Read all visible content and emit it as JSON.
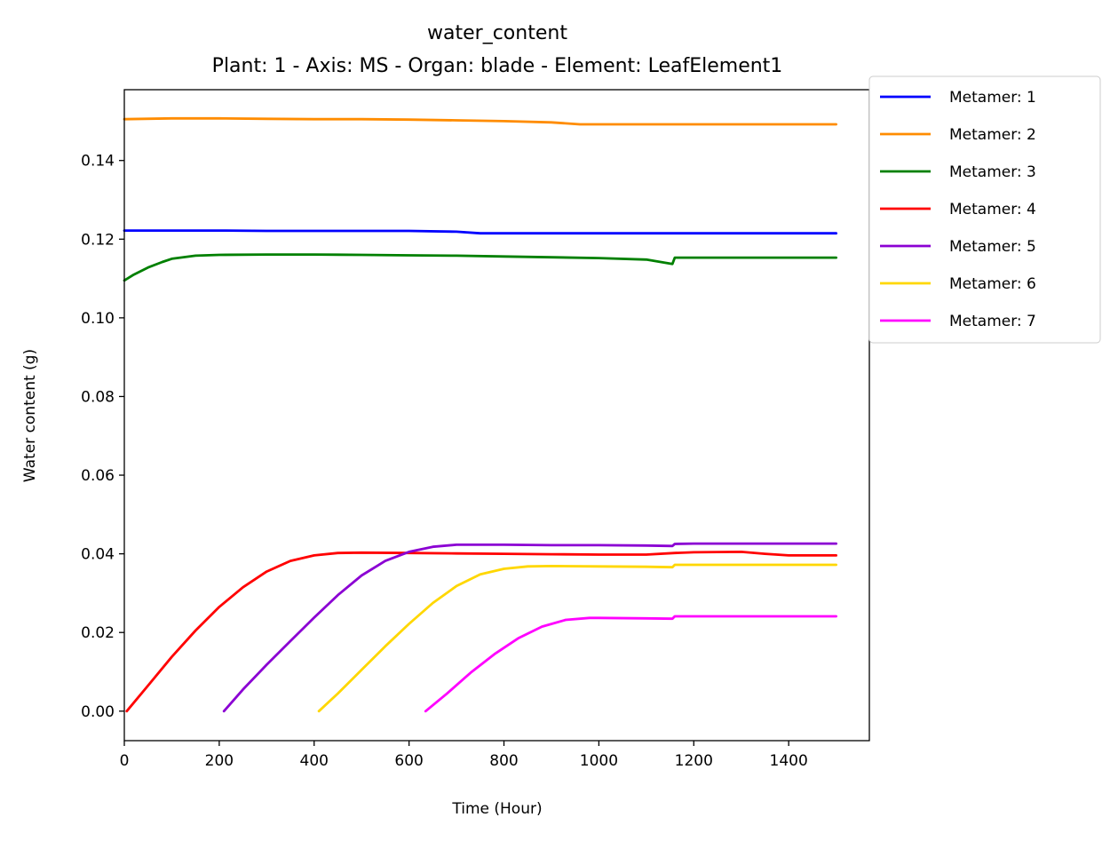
{
  "chart_data": {
    "type": "line",
    "title": "water_content",
    "subtitle": "Plant: 1 - Axis: MS - Organ: blade - Element: LeafElement1",
    "xlabel": "Time (Hour)",
    "ylabel": "Water content (g)",
    "xlim": [
      0,
      1570
    ],
    "ylim": [
      -0.0075,
      0.158
    ],
    "xticks": [
      0,
      200,
      400,
      600,
      800,
      1000,
      1200,
      1400
    ],
    "xtick_labels": [
      "0",
      "200",
      "400",
      "600",
      "800",
      "1000",
      "1200",
      "1400"
    ],
    "yticks": [
      0.0,
      0.02,
      0.04,
      0.06,
      0.08,
      0.1,
      0.12,
      0.14
    ],
    "ytick_labels": [
      "0.00",
      "0.02",
      "0.04",
      "0.06",
      "0.08",
      "0.10",
      "0.12",
      "0.14"
    ],
    "grid": false,
    "legend_position": "outside-top-right",
    "series": [
      {
        "name": "Metamer: 1",
        "color": "#0000ff",
        "x": [
          0,
          100,
          200,
          300,
          400,
          500,
          600,
          700,
          750,
          800,
          1000,
          1200,
          1400,
          1500
        ],
        "y": [
          0.1222,
          0.1222,
          0.1222,
          0.1221,
          0.1221,
          0.1221,
          0.1221,
          0.1219,
          0.1215,
          0.1215,
          0.1215,
          0.1215,
          0.1215,
          0.1215
        ]
      },
      {
        "name": "Metamer: 2",
        "color": "#ff8c00",
        "x": [
          0,
          100,
          200,
          300,
          400,
          500,
          600,
          700,
          800,
          900,
          960,
          1000,
          1200,
          1400,
          1500
        ],
        "y": [
          0.1505,
          0.1507,
          0.1507,
          0.1506,
          0.1505,
          0.1505,
          0.1504,
          0.1502,
          0.15,
          0.1497,
          0.1492,
          0.1492,
          0.1492,
          0.1492,
          0.1492
        ]
      },
      {
        "name": "Metamer: 3",
        "color": "#008000",
        "x": [
          0,
          20,
          50,
          80,
          100,
          150,
          200,
          300,
          400,
          500,
          600,
          700,
          800,
          900,
          1000,
          1100,
          1155,
          1160,
          1200,
          1300,
          1400,
          1500
        ],
        "y": [
          0.1095,
          0.111,
          0.1128,
          0.1142,
          0.115,
          0.1158,
          0.116,
          0.1161,
          0.1161,
          0.116,
          0.1159,
          0.1158,
          0.1156,
          0.1154,
          0.1152,
          0.1148,
          0.1137,
          0.1153,
          0.1153,
          0.1153,
          0.1153,
          0.1153
        ]
      },
      {
        "name": "Metamer: 4",
        "color": "#ff0000",
        "x": [
          5,
          50,
          100,
          150,
          200,
          250,
          300,
          350,
          400,
          450,
          500,
          600,
          700,
          800,
          900,
          1000,
          1100,
          1160,
          1200,
          1300,
          1350,
          1400,
          1500
        ],
        "y": [
          0.0,
          0.0065,
          0.0138,
          0.0205,
          0.0265,
          0.0315,
          0.0355,
          0.0382,
          0.0396,
          0.0402,
          0.0403,
          0.0402,
          0.0401,
          0.04,
          0.0399,
          0.0398,
          0.0398,
          0.0402,
          0.0404,
          0.0405,
          0.04,
          0.0396,
          0.0396
        ]
      },
      {
        "name": "Metamer: 5",
        "color": "#8b00d3",
        "x": [
          210,
          250,
          300,
          350,
          400,
          450,
          500,
          550,
          600,
          650,
          700,
          800,
          900,
          1000,
          1100,
          1155,
          1160,
          1200,
          1300,
          1400,
          1500
        ],
        "y": [
          0.0,
          0.0055,
          0.0118,
          0.0178,
          0.0238,
          0.0295,
          0.0345,
          0.0382,
          0.0405,
          0.0418,
          0.0423,
          0.0423,
          0.0422,
          0.0422,
          0.0421,
          0.042,
          0.0425,
          0.0426,
          0.0426,
          0.0426,
          0.0426
        ]
      },
      {
        "name": "Metamer: 6",
        "color": "#ffd700",
        "x": [
          410,
          450,
          500,
          550,
          600,
          650,
          700,
          750,
          800,
          850,
          900,
          1000,
          1100,
          1155,
          1160,
          1200,
          1300,
          1400,
          1500
        ],
        "y": [
          0.0,
          0.0045,
          0.0105,
          0.0165,
          0.0222,
          0.0275,
          0.0318,
          0.0348,
          0.0362,
          0.0368,
          0.0369,
          0.0368,
          0.0367,
          0.0366,
          0.0372,
          0.0372,
          0.0372,
          0.0372,
          0.0372
        ]
      },
      {
        "name": "Metamer: 7",
        "color": "#ff00ff",
        "x": [
          635,
          680,
          730,
          780,
          830,
          880,
          930,
          980,
          1000,
          1100,
          1155,
          1160,
          1200,
          1300,
          1400,
          1500
        ],
        "y": [
          0.0,
          0.0045,
          0.0098,
          0.0145,
          0.0185,
          0.0215,
          0.0232,
          0.0237,
          0.0237,
          0.0236,
          0.0235,
          0.0241,
          0.0241,
          0.0241,
          0.0241,
          0.0241
        ]
      }
    ]
  }
}
